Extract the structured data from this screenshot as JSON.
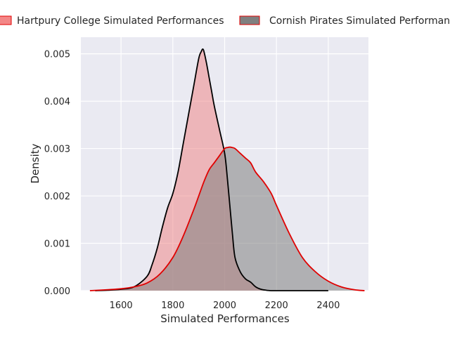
{
  "chart_data": {
    "type": "area",
    "title": "",
    "xlabel": "Simulated Performances",
    "ylabel": "Density",
    "xlim": [
      1445,
      2555
    ],
    "ylim": [
      0,
      0.00535
    ],
    "xticks": [
      1600,
      1800,
      2000,
      2200,
      2400
    ],
    "xtick_labels": [
      "1600",
      "1800",
      "2000",
      "2200",
      "2400"
    ],
    "yticks": [
      0,
      0.001,
      0.002,
      0.003,
      0.004,
      0.005
    ],
    "ytick_labels": [
      "0.000",
      "0.001",
      "0.002",
      "0.003",
      "0.004",
      "0.005"
    ],
    "grid": true,
    "legend_position": "top",
    "series": [
      {
        "name": "Hartpury College Simulated Performances",
        "fill": "#f08080",
        "fill_opacity": 0.5,
        "line": "#000000",
        "x": [
          1500,
          1550,
          1600,
          1650,
          1700,
          1720,
          1740,
          1760,
          1780,
          1800,
          1820,
          1840,
          1860,
          1880,
          1900,
          1910,
          1915,
          1920,
          1930,
          1940,
          1950,
          1960,
          1980,
          2000,
          2010,
          2020,
          2030,
          2040,
          2060,
          2080,
          2100,
          2120,
          2140,
          2160,
          2180,
          2200,
          2250,
          2300,
          2350,
          2400
        ],
        "values": [
          0,
          1e-05,
          3e-05,
          8e-05,
          0.0003,
          0.00055,
          0.0009,
          0.00135,
          0.00175,
          0.00205,
          0.0025,
          0.0031,
          0.0037,
          0.0043,
          0.0049,
          0.00505,
          0.0051,
          0.00505,
          0.0048,
          0.0045,
          0.0042,
          0.0039,
          0.0034,
          0.0029,
          0.0024,
          0.0018,
          0.0012,
          0.0007,
          0.0004,
          0.00025,
          0.00018,
          8e-05,
          3e-05,
          1e-05,
          0,
          0,
          0,
          0,
          0,
          0
        ]
      },
      {
        "name": "Cornish Pirates Simulated Performances",
        "fill": "#808080",
        "fill_opacity": 0.55,
        "line": "#e00000",
        "x": [
          1480,
          1550,
          1600,
          1650,
          1700,
          1750,
          1800,
          1840,
          1880,
          1900,
          1920,
          1940,
          1960,
          1980,
          2000,
          2010,
          2020,
          2030,
          2040,
          2060,
          2080,
          2100,
          2120,
          2150,
          2180,
          2200,
          2250,
          2300,
          2350,
          2400,
          2450,
          2500,
          2540
        ],
        "values": [
          0,
          2e-05,
          4e-05,
          8e-05,
          0.00016,
          0.00035,
          0.0007,
          0.00115,
          0.0017,
          0.002,
          0.0023,
          0.00255,
          0.0027,
          0.00285,
          0.003,
          0.00302,
          0.00303,
          0.00302,
          0.003,
          0.0029,
          0.0028,
          0.0027,
          0.0025,
          0.0023,
          0.00205,
          0.0018,
          0.0012,
          0.0007,
          0.0004,
          0.0002,
          8e-05,
          2e-05,
          0
        ]
      }
    ]
  }
}
